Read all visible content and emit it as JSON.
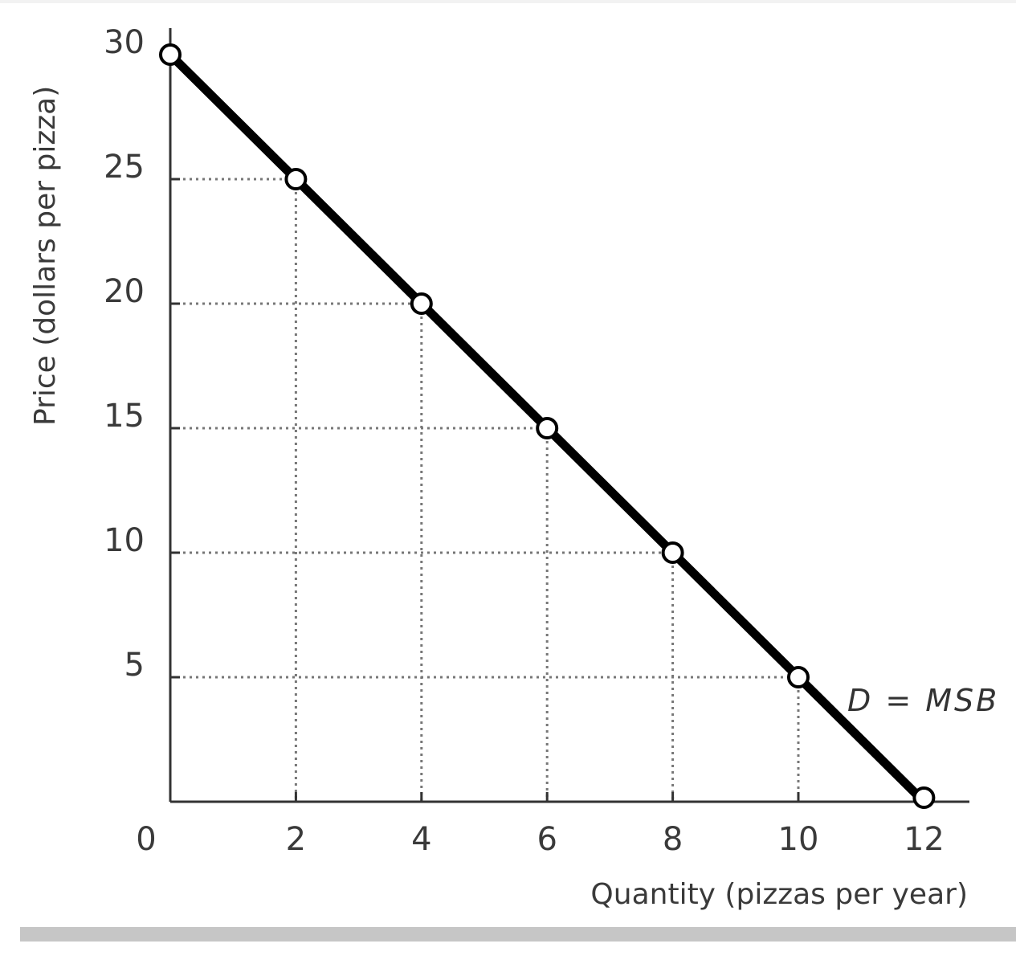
{
  "chart_data": {
    "type": "line",
    "title": "",
    "xlabel": "Quantity (pizzas per year)",
    "ylabel": "Price (dollars per pizza)",
    "x_ticks": [
      "0",
      "2",
      "4",
      "6",
      "8",
      "10",
      "12"
    ],
    "y_ticks": [
      "5",
      "10",
      "15",
      "20",
      "25",
      "30"
    ],
    "xlim": [
      0,
      12.5
    ],
    "ylim": [
      0,
      30
    ],
    "grid": "dotted guide lines from each point to axes",
    "series": [
      {
        "name": "D = MSB",
        "x": [
          0,
          2,
          4,
          6,
          8,
          10,
          12
        ],
        "y": [
          30,
          25,
          20,
          15,
          10,
          5,
          0
        ],
        "marker": "open circle",
        "color": "#000000"
      }
    ],
    "annotations": [
      {
        "text": "D = MSB",
        "x": 10.4,
        "y": 4.2
      }
    ]
  }
}
